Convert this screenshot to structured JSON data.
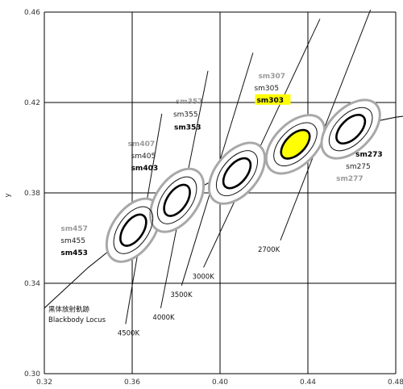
{
  "chart_data": {
    "type": "scatter",
    "title": "",
    "xlabel": "",
    "ylabel": "y",
    "xlim": [
      0.32,
      0.48
    ],
    "ylim": [
      0.3,
      0.46
    ],
    "x_ticks": [
      "0.32",
      "0.36",
      "0.40",
      "0.44",
      "0.48"
    ],
    "y_ticks": [
      "0.30",
      "0.34",
      "0.38",
      "0.42",
      "0.46"
    ],
    "grid": true,
    "colors": {
      "gray_ellipse": "#a8a8a8",
      "highlight": "#ffff00",
      "grid": "#000000",
      "lines": "#111111"
    },
    "locus": {
      "label_jp": "黒体放射軌跡",
      "label_en": "Blackbody Locus",
      "points": [
        [
          0.32,
          0.329
        ],
        [
          0.34,
          0.347
        ],
        [
          0.36,
          0.3625
        ],
        [
          0.38,
          0.376
        ],
        [
          0.4,
          0.3875
        ],
        [
          0.42,
          0.397
        ],
        [
          0.44,
          0.4045
        ],
        [
          0.46,
          0.4095
        ],
        [
          0.48,
          0.4135
        ],
        [
          0.488,
          0.4145
        ]
      ]
    },
    "isotherms": [
      {
        "label": "4500K",
        "from": [
          0.357,
          0.322
        ],
        "to": [
          0.3735,
          0.415
        ]
      },
      {
        "label": "4000K",
        "from": [
          0.373,
          0.329
        ],
        "to": [
          0.3945,
          0.434
        ]
      },
      {
        "label": "3500K",
        "from": [
          0.3825,
          0.339
        ],
        "to": [
          0.415,
          0.442
        ]
      },
      {
        "label": "3000K",
        "from": [
          0.3925,
          0.347
        ],
        "to": [
          0.4455,
          0.457
        ]
      },
      {
        "label": "2700K",
        "from": [
          0.4275,
          0.359
        ],
        "to": [
          0.4685,
          0.461
        ]
      }
    ],
    "groups": [
      {
        "center": [
          0.3605,
          0.3635
        ],
        "angle": -55,
        "labels": {
          "sm4_57": "sm457",
          "sm4_55": "sm455",
          "sm4_53": "sm453"
        },
        "names": [
          "sm457",
          "sm455",
          "sm453"
        ]
      },
      {
        "center": [
          0.3804,
          0.3767
        ],
        "angle": -55,
        "names": [
          "sm407",
          "sm405",
          "sm403"
        ]
      },
      {
        "center": [
          0.4077,
          0.3887
        ],
        "angle": -50,
        "names": [
          "sm357",
          "sm355",
          "sm353"
        ]
      },
      {
        "center": [
          0.4343,
          0.4015
        ],
        "angle": -45,
        "names": [
          "sm307",
          "sm305",
          "sm303"
        ]
      },
      {
        "center": [
          0.4595,
          0.4082
        ],
        "angle": -45,
        "names": [
          "sm277",
          "sm275",
          "sm273"
        ]
      }
    ],
    "series": [
      {
        "name": "sm457",
        "x": 0.3605,
        "y": 0.3635,
        "tier": "outer"
      },
      {
        "name": "sm455",
        "x": 0.3605,
        "y": 0.3635,
        "tier": "middle"
      },
      {
        "name": "sm453",
        "x": 0.3605,
        "y": 0.3635,
        "tier": "inner"
      },
      {
        "name": "sm407",
        "x": 0.3804,
        "y": 0.3767,
        "tier": "outer"
      },
      {
        "name": "sm405",
        "x": 0.3804,
        "y": 0.3767,
        "tier": "middle"
      },
      {
        "name": "sm403",
        "x": 0.3804,
        "y": 0.3767,
        "tier": "inner"
      },
      {
        "name": "sm357",
        "x": 0.4077,
        "y": 0.3887,
        "tier": "outer"
      },
      {
        "name": "sm355",
        "x": 0.4077,
        "y": 0.3887,
        "tier": "middle"
      },
      {
        "name": "sm353",
        "x": 0.4077,
        "y": 0.3887,
        "tier": "inner"
      },
      {
        "name": "sm307",
        "x": 0.4343,
        "y": 0.4015,
        "tier": "outer"
      },
      {
        "name": "sm305",
        "x": 0.4343,
        "y": 0.4015,
        "tier": "middle"
      },
      {
        "name": "sm303",
        "x": 0.4343,
        "y": 0.4015,
        "tier": "inner",
        "highlighted": true
      },
      {
        "name": "sm277",
        "x": 0.4595,
        "y": 0.4082,
        "tier": "outer"
      },
      {
        "name": "sm275",
        "x": 0.4595,
        "y": 0.4082,
        "tier": "middle"
      },
      {
        "name": "sm273",
        "x": 0.4595,
        "y": 0.4082,
        "tier": "inner"
      }
    ]
  }
}
